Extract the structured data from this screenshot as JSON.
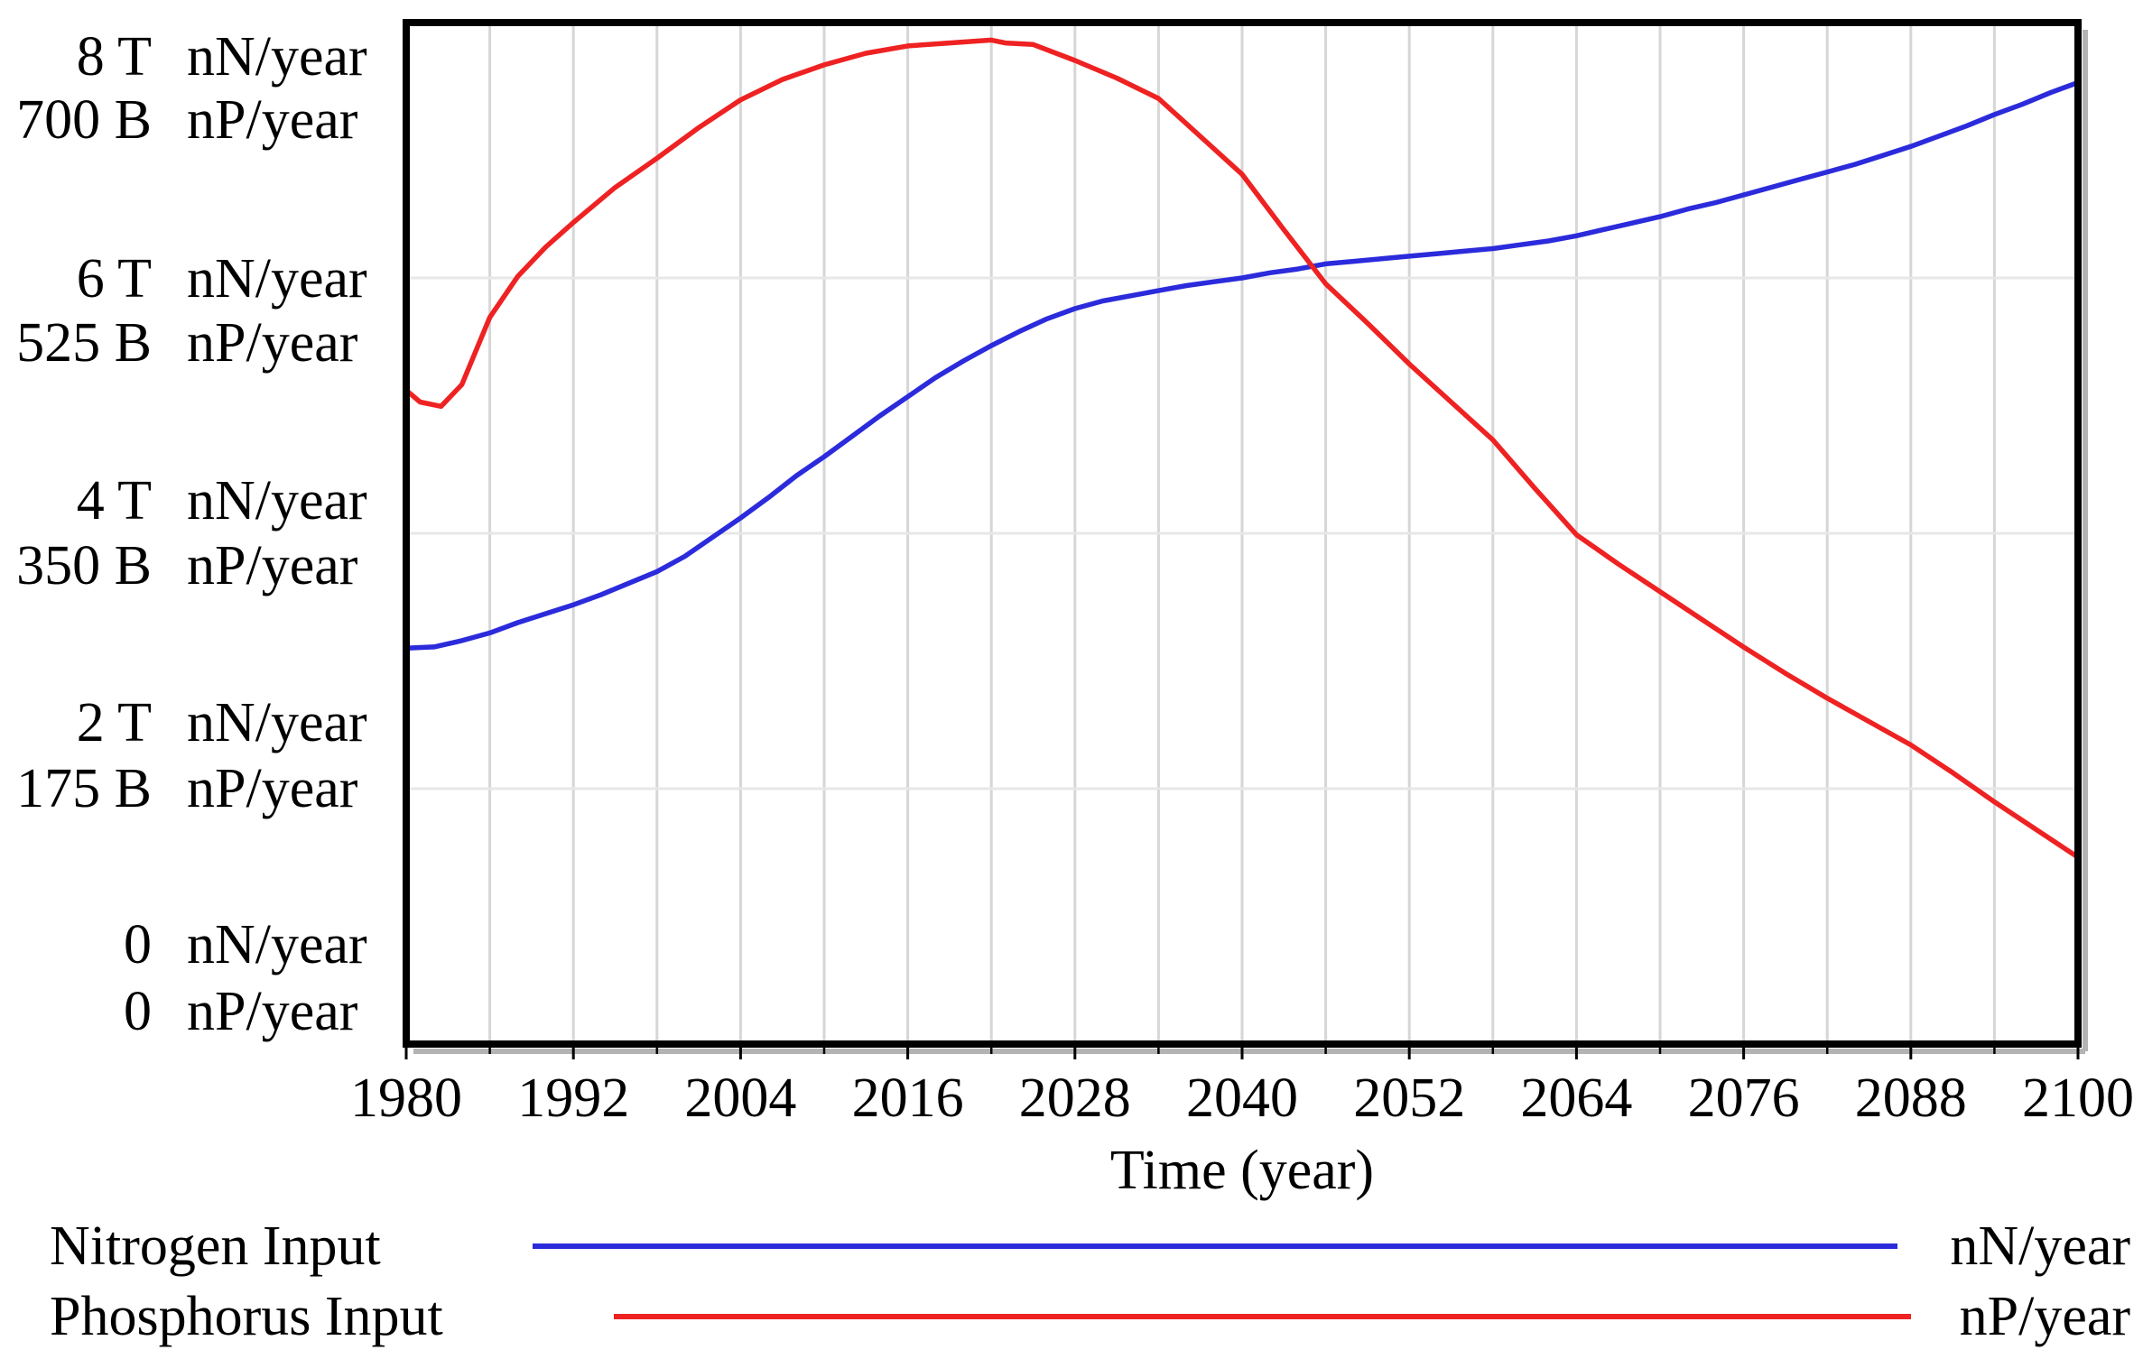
{
  "chart_data": {
    "type": "line",
    "title": "",
    "xlabel": "Time (year)",
    "x_range": [
      1980,
      2100
    ],
    "x_ticks": [
      1980,
      1992,
      2004,
      2016,
      2028,
      2040,
      2052,
      2064,
      2076,
      2088,
      2100
    ],
    "grid": {
      "vertical_step_years": 6,
      "horizontal_levels_nN_T": [
        2,
        4,
        6
      ],
      "grid_on": true
    },
    "y_axis": {
      "rows": [
        {
          "n_value": "8 T",
          "n_unit": "nN/year",
          "p_value": "700 B",
          "p_unit": "nP/year"
        },
        {
          "n_value": "6 T",
          "n_unit": "nN/year",
          "p_value": "525 B",
          "p_unit": "nP/year"
        },
        {
          "n_value": "4 T",
          "n_unit": "nN/year",
          "p_value": "350 B",
          "p_unit": "nP/year"
        },
        {
          "n_value": "2 T",
          "n_unit": "nN/year",
          "p_value": "175 B",
          "p_unit": "nP/year"
        },
        {
          "n_value": "0",
          "n_unit": "nN/year",
          "p_value": "0",
          "p_unit": "nP/year"
        }
      ],
      "nitrogen_axis_range": "0 to 8 T nN/year",
      "phosphorus_axis_range": "0 to 700 B nP/year"
    },
    "legend_position": "bottom-left",
    "series": [
      {
        "name": "Nitrogen Input",
        "unit": "nN/year",
        "color": "#2b2bdc",
        "scale_max": 8,
        "scale_unit": "T nN/year",
        "points": [
          [
            1980,
            3.1
          ],
          [
            1982,
            3.11
          ],
          [
            1984,
            3.16
          ],
          [
            1986,
            3.22
          ],
          [
            1988,
            3.3
          ],
          [
            1990,
            3.37
          ],
          [
            1992,
            3.44
          ],
          [
            1994,
            3.52
          ],
          [
            1996,
            3.61
          ],
          [
            1998,
            3.7
          ],
          [
            2000,
            3.82
          ],
          [
            2002,
            3.97
          ],
          [
            2004,
            4.12
          ],
          [
            2006,
            4.28
          ],
          [
            2008,
            4.45
          ],
          [
            2010,
            4.6
          ],
          [
            2012,
            4.76
          ],
          [
            2014,
            4.92
          ],
          [
            2016,
            5.07
          ],
          [
            2018,
            5.22
          ],
          [
            2020,
            5.35
          ],
          [
            2022,
            5.47
          ],
          [
            2024,
            5.58
          ],
          [
            2026,
            5.68
          ],
          [
            2028,
            5.76
          ],
          [
            2030,
            5.82
          ],
          [
            2032,
            5.86
          ],
          [
            2034,
            5.9
          ],
          [
            2036,
            5.94
          ],
          [
            2038,
            5.97
          ],
          [
            2040,
            6.0
          ],
          [
            2042,
            6.04
          ],
          [
            2044,
            6.07
          ],
          [
            2046,
            6.11
          ],
          [
            2048,
            6.13
          ],
          [
            2050,
            6.15
          ],
          [
            2052,
            6.17
          ],
          [
            2054,
            6.19
          ],
          [
            2056,
            6.21
          ],
          [
            2058,
            6.23
          ],
          [
            2060,
            6.26
          ],
          [
            2062,
            6.29
          ],
          [
            2064,
            6.33
          ],
          [
            2066,
            6.38
          ],
          [
            2068,
            6.43
          ],
          [
            2070,
            6.48
          ],
          [
            2072,
            6.54
          ],
          [
            2074,
            6.59
          ],
          [
            2076,
            6.65
          ],
          [
            2078,
            6.71
          ],
          [
            2080,
            6.77
          ],
          [
            2082,
            6.83
          ],
          [
            2084,
            6.89
          ],
          [
            2086,
            6.96
          ],
          [
            2088,
            7.03
          ],
          [
            2090,
            7.11
          ],
          [
            2092,
            7.19
          ],
          [
            2094,
            7.28
          ],
          [
            2096,
            7.36
          ],
          [
            2098,
            7.45
          ],
          [
            2100,
            7.53
          ]
        ]
      },
      {
        "name": "Phosphorus Input",
        "unit": "nP/year",
        "color": "#ee2222",
        "scale_max": 700,
        "scale_unit": "B nP/year",
        "points": [
          [
            1980,
            448
          ],
          [
            1981,
            440
          ],
          [
            1982.5,
            437
          ],
          [
            1984,
            452
          ],
          [
            1986,
            498
          ],
          [
            1988,
            526
          ],
          [
            1990,
            546
          ],
          [
            1992,
            563
          ],
          [
            1995,
            587
          ],
          [
            1998,
            607
          ],
          [
            2001,
            628
          ],
          [
            2004,
            647
          ],
          [
            2007,
            661
          ],
          [
            2010,
            671
          ],
          [
            2013,
            679
          ],
          [
            2016,
            684
          ],
          [
            2019,
            686
          ],
          [
            2022,
            688
          ],
          [
            2023,
            686
          ],
          [
            2025,
            685
          ],
          [
            2028,
            674
          ],
          [
            2031,
            662
          ],
          [
            2034,
            648
          ],
          [
            2037,
            622
          ],
          [
            2040,
            596
          ],
          [
            2043,
            558
          ],
          [
            2046,
            521
          ],
          [
            2049,
            494
          ],
          [
            2052,
            466
          ],
          [
            2055,
            440
          ],
          [
            2058,
            414
          ],
          [
            2061,
            381
          ],
          [
            2064,
            349
          ],
          [
            2067,
            329
          ],
          [
            2070,
            310
          ],
          [
            2073,
            291
          ],
          [
            2076,
            272
          ],
          [
            2079,
            254
          ],
          [
            2082,
            237
          ],
          [
            2085,
            221
          ],
          [
            2088,
            205
          ],
          [
            2091,
            186
          ],
          [
            2094,
            166
          ],
          [
            2097,
            147
          ],
          [
            2100,
            128
          ]
        ]
      }
    ]
  },
  "colors": {
    "nitrogen": "#2b2bdc",
    "phosphorus": "#ee2222",
    "grid_vertical": "#d6d6d6",
    "grid_horizontal": "#e7e7e7",
    "border": "#000000",
    "border_shadow": "#b3b3b3",
    "text": "#000000",
    "background": "#ffffff"
  }
}
